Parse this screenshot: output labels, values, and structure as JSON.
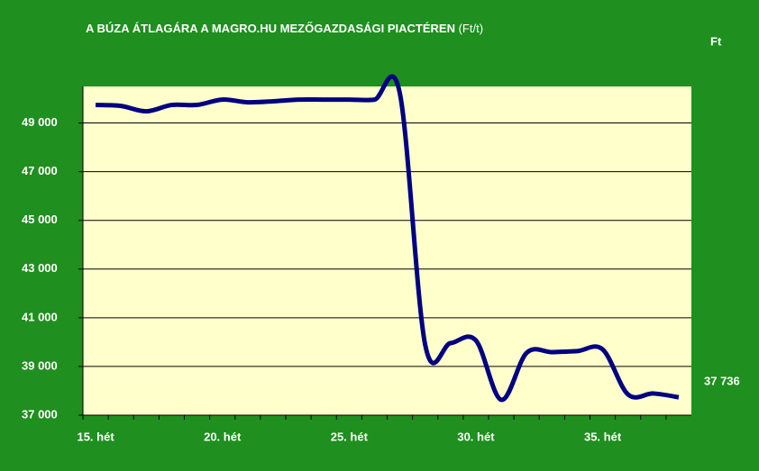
{
  "chart_data": {
    "type": "line",
    "title": "A BÚZA ÁTLAGÁRA A MAGRO.HU MEZŐGAZDASÁGI PIACTÉREN",
    "title_unit": "(Ft/t)",
    "y_axis_label": "Ft",
    "categories": [
      "15. hét",
      null,
      null,
      null,
      null,
      "20. hét",
      null,
      null,
      null,
      null,
      "25. hét",
      null,
      null,
      null,
      null,
      "30. hét",
      null,
      null,
      null,
      null,
      "35. hét",
      null,
      null,
      null
    ],
    "series": [
      {
        "color": "#000080",
        "values": [
          49741,
          49700,
          49480,
          49740,
          49740,
          49960,
          49850,
          49890,
          49960,
          49960,
          49960,
          49960,
          50220,
          39890,
          39960,
          40070,
          37630,
          39560,
          39590,
          39630,
          39700,
          37850,
          37890,
          37736
        ],
        "value_labels": [
          null,
          null,
          null,
          null,
          null,
          null,
          null,
          null,
          null,
          null,
          null,
          null,
          null,
          null,
          null,
          null,
          null,
          null,
          null,
          null,
          null,
          null,
          null,
          "37 736"
        ]
      }
    ],
    "ylim": [
      37000,
      50500
    ],
    "yticks": [
      {
        "value": 37000,
        "label": "37 000"
      },
      {
        "value": 39000,
        "label": "39 000"
      },
      {
        "value": 41000,
        "label": "41 000"
      },
      {
        "value": 43000,
        "label": "43 000"
      },
      {
        "value": 45000,
        "label": "45 000"
      },
      {
        "value": 47000,
        "label": "47 000"
      },
      {
        "value": 49000,
        "label": "49 000"
      }
    ],
    "grid": true,
    "background": "#1f8f1f",
    "plot_background": "#ffffcc"
  }
}
